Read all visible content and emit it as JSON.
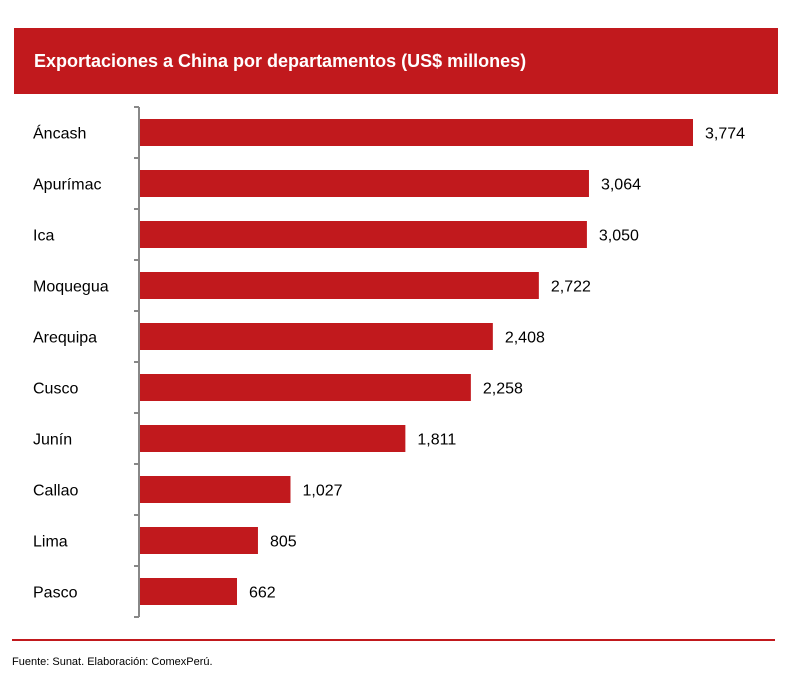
{
  "chart_data": {
    "type": "bar",
    "orientation": "horizontal",
    "title": "Exportaciones a China por departamentos (US$ millones)",
    "categories": [
      "Áncash",
      "Apurímac",
      "Ica",
      "Moquegua",
      "Arequipa",
      "Cusco",
      "Junín",
      "Callao",
      "Lima",
      "Pasco"
    ],
    "values": [
      3774,
      3064,
      3050,
      2722,
      2408,
      2258,
      1811,
      1027,
      805,
      662
    ],
    "data_labels": [
      "3,774",
      "3,064",
      "3,050",
      "2,722",
      "2,408",
      "2,258",
      "1,811",
      "1,027",
      "805",
      "662"
    ],
    "xlim": [
      0,
      3774
    ],
    "bar_color": "#c1191d",
    "grid": false
  },
  "footer": {
    "source": "Fuente: Sunat. Elaboración: ComexPerú."
  }
}
